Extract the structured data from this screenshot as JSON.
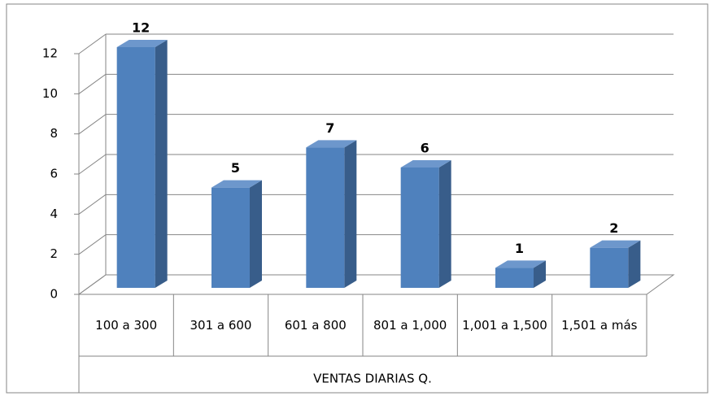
{
  "chart_data": {
    "type": "bar",
    "categories": [
      "100 a 300",
      "301 a 600",
      "601 a 800",
      "801 a 1,000",
      "1,001 a 1,500",
      "1,501 a más"
    ],
    "values": [
      12,
      5,
      7,
      6,
      1,
      2
    ],
    "color": "#4f81bd",
    "ylim": [
      0,
      12
    ],
    "yticks": [
      0,
      2,
      4,
      6,
      8,
      10,
      12
    ],
    "grid": true,
    "x_label": "VENTAS DIARIAS Q."
  }
}
